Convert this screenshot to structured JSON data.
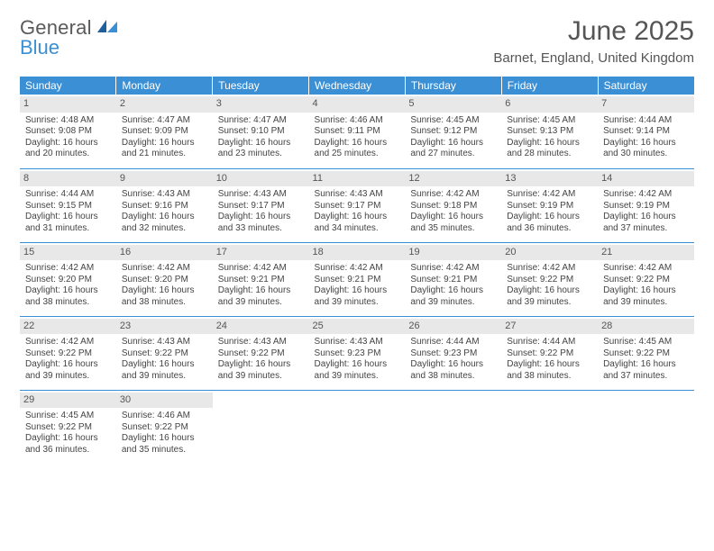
{
  "logo": {
    "text1": "General",
    "text2": "Blue"
  },
  "title": "June 2025",
  "location": "Barnet, England, United Kingdom",
  "colors": {
    "header_bg": "#3b8fd4",
    "header_text": "#ffffff",
    "daynum_bg": "#e8e8e8",
    "text": "#444444",
    "rule": "#3b8fd4"
  },
  "weekdays": [
    "Sunday",
    "Monday",
    "Tuesday",
    "Wednesday",
    "Thursday",
    "Friday",
    "Saturday"
  ],
  "weeks": [
    [
      {
        "n": "1",
        "sr": "Sunrise: 4:48 AM",
        "ss": "Sunset: 9:08 PM",
        "dl": "Daylight: 16 hours and 20 minutes."
      },
      {
        "n": "2",
        "sr": "Sunrise: 4:47 AM",
        "ss": "Sunset: 9:09 PM",
        "dl": "Daylight: 16 hours and 21 minutes."
      },
      {
        "n": "3",
        "sr": "Sunrise: 4:47 AM",
        "ss": "Sunset: 9:10 PM",
        "dl": "Daylight: 16 hours and 23 minutes."
      },
      {
        "n": "4",
        "sr": "Sunrise: 4:46 AM",
        "ss": "Sunset: 9:11 PM",
        "dl": "Daylight: 16 hours and 25 minutes."
      },
      {
        "n": "5",
        "sr": "Sunrise: 4:45 AM",
        "ss": "Sunset: 9:12 PM",
        "dl": "Daylight: 16 hours and 27 minutes."
      },
      {
        "n": "6",
        "sr": "Sunrise: 4:45 AM",
        "ss": "Sunset: 9:13 PM",
        "dl": "Daylight: 16 hours and 28 minutes."
      },
      {
        "n": "7",
        "sr": "Sunrise: 4:44 AM",
        "ss": "Sunset: 9:14 PM",
        "dl": "Daylight: 16 hours and 30 minutes."
      }
    ],
    [
      {
        "n": "8",
        "sr": "Sunrise: 4:44 AM",
        "ss": "Sunset: 9:15 PM",
        "dl": "Daylight: 16 hours and 31 minutes."
      },
      {
        "n": "9",
        "sr": "Sunrise: 4:43 AM",
        "ss": "Sunset: 9:16 PM",
        "dl": "Daylight: 16 hours and 32 minutes."
      },
      {
        "n": "10",
        "sr": "Sunrise: 4:43 AM",
        "ss": "Sunset: 9:17 PM",
        "dl": "Daylight: 16 hours and 33 minutes."
      },
      {
        "n": "11",
        "sr": "Sunrise: 4:43 AM",
        "ss": "Sunset: 9:17 PM",
        "dl": "Daylight: 16 hours and 34 minutes."
      },
      {
        "n": "12",
        "sr": "Sunrise: 4:42 AM",
        "ss": "Sunset: 9:18 PM",
        "dl": "Daylight: 16 hours and 35 minutes."
      },
      {
        "n": "13",
        "sr": "Sunrise: 4:42 AM",
        "ss": "Sunset: 9:19 PM",
        "dl": "Daylight: 16 hours and 36 minutes."
      },
      {
        "n": "14",
        "sr": "Sunrise: 4:42 AM",
        "ss": "Sunset: 9:19 PM",
        "dl": "Daylight: 16 hours and 37 minutes."
      }
    ],
    [
      {
        "n": "15",
        "sr": "Sunrise: 4:42 AM",
        "ss": "Sunset: 9:20 PM",
        "dl": "Daylight: 16 hours and 38 minutes."
      },
      {
        "n": "16",
        "sr": "Sunrise: 4:42 AM",
        "ss": "Sunset: 9:20 PM",
        "dl": "Daylight: 16 hours and 38 minutes."
      },
      {
        "n": "17",
        "sr": "Sunrise: 4:42 AM",
        "ss": "Sunset: 9:21 PM",
        "dl": "Daylight: 16 hours and 39 minutes."
      },
      {
        "n": "18",
        "sr": "Sunrise: 4:42 AM",
        "ss": "Sunset: 9:21 PM",
        "dl": "Daylight: 16 hours and 39 minutes."
      },
      {
        "n": "19",
        "sr": "Sunrise: 4:42 AM",
        "ss": "Sunset: 9:21 PM",
        "dl": "Daylight: 16 hours and 39 minutes."
      },
      {
        "n": "20",
        "sr": "Sunrise: 4:42 AM",
        "ss": "Sunset: 9:22 PM",
        "dl": "Daylight: 16 hours and 39 minutes."
      },
      {
        "n": "21",
        "sr": "Sunrise: 4:42 AM",
        "ss": "Sunset: 9:22 PM",
        "dl": "Daylight: 16 hours and 39 minutes."
      }
    ],
    [
      {
        "n": "22",
        "sr": "Sunrise: 4:42 AM",
        "ss": "Sunset: 9:22 PM",
        "dl": "Daylight: 16 hours and 39 minutes."
      },
      {
        "n": "23",
        "sr": "Sunrise: 4:43 AM",
        "ss": "Sunset: 9:22 PM",
        "dl": "Daylight: 16 hours and 39 minutes."
      },
      {
        "n": "24",
        "sr": "Sunrise: 4:43 AM",
        "ss": "Sunset: 9:22 PM",
        "dl": "Daylight: 16 hours and 39 minutes."
      },
      {
        "n": "25",
        "sr": "Sunrise: 4:43 AM",
        "ss": "Sunset: 9:23 PM",
        "dl": "Daylight: 16 hours and 39 minutes."
      },
      {
        "n": "26",
        "sr": "Sunrise: 4:44 AM",
        "ss": "Sunset: 9:23 PM",
        "dl": "Daylight: 16 hours and 38 minutes."
      },
      {
        "n": "27",
        "sr": "Sunrise: 4:44 AM",
        "ss": "Sunset: 9:22 PM",
        "dl": "Daylight: 16 hours and 38 minutes."
      },
      {
        "n": "28",
        "sr": "Sunrise: 4:45 AM",
        "ss": "Sunset: 9:22 PM",
        "dl": "Daylight: 16 hours and 37 minutes."
      }
    ],
    [
      {
        "n": "29",
        "sr": "Sunrise: 4:45 AM",
        "ss": "Sunset: 9:22 PM",
        "dl": "Daylight: 16 hours and 36 minutes."
      },
      {
        "n": "30",
        "sr": "Sunrise: 4:46 AM",
        "ss": "Sunset: 9:22 PM",
        "dl": "Daylight: 16 hours and 35 minutes."
      },
      null,
      null,
      null,
      null,
      null
    ]
  ]
}
